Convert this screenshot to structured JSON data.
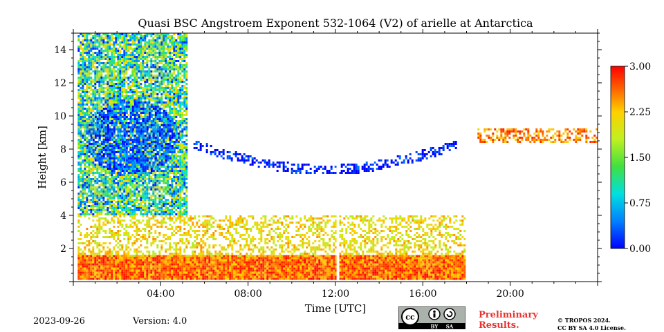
{
  "chart_data": {
    "type": "heatmap",
    "title": "Quasi BSC Angstroem Exponent 532-1064 (V2) of arielle at Antarctica",
    "xlabel": "Time [UTC]",
    "ylabel": "Height [km]",
    "x_range_hours": [
      0,
      24
    ],
    "y_range_km": [
      0,
      15
    ],
    "x_ticks": [
      {
        "value": 4,
        "label": "04:00"
      },
      {
        "value": 8,
        "label": "08:00"
      },
      {
        "value": 12,
        "label": "12:00"
      },
      {
        "value": 16,
        "label": "16:00"
      },
      {
        "value": 20,
        "label": "20:00"
      }
    ],
    "y_ticks": [
      {
        "value": 2,
        "label": "2"
      },
      {
        "value": 4,
        "label": "4"
      },
      {
        "value": 6,
        "label": "6"
      },
      {
        "value": 8,
        "label": "8"
      },
      {
        "value": 10,
        "label": "10"
      },
      {
        "value": 12,
        "label": "12"
      },
      {
        "value": 14,
        "label": "14"
      }
    ],
    "colorbar": {
      "range": [
        0.0,
        3.0
      ],
      "ticks": [
        {
          "value": 0.0,
          "label": "0.00"
        },
        {
          "value": 0.75,
          "label": "0.75"
        },
        {
          "value": 1.5,
          "label": "1.50"
        },
        {
          "value": 2.25,
          "label": "2.25"
        },
        {
          "value": 3.0,
          "label": "3.00"
        }
      ],
      "colormap": "jet"
    },
    "regions": [
      {
        "name": "boundary-layer",
        "t": [
          0.2,
          17.9
        ],
        "h": [
          0.1,
          1.6
        ],
        "value": 2.6
      },
      {
        "name": "lower-aerosol",
        "t": [
          0.2,
          17.9
        ],
        "h": [
          1.6,
          4.0
        ],
        "value": 2.1
      },
      {
        "name": "early-noisy-column",
        "t": [
          0.2,
          5.2
        ],
        "h": [
          4.0,
          15.0
        ],
        "value": 1.2
      },
      {
        "name": "blue-cloud",
        "t": [
          0.5,
          4.8
        ],
        "h": [
          6.5,
          11.0
        ],
        "value": 0.3
      },
      {
        "name": "thin-cirrus",
        "t": [
          5.5,
          17.5
        ],
        "h": [
          6.5,
          9.0
        ],
        "value": 0.05
      },
      {
        "name": "late-cloud",
        "t": [
          18.5,
          24.0
        ],
        "h": [
          7.8,
          10.0
        ],
        "value": 2.5
      }
    ]
  },
  "footer": {
    "date": "2023-09-26",
    "version": "Version: 4.0",
    "preliminary_line1": "Preliminary",
    "preliminary_line2": "Results.",
    "copyright_line1": "© TROPOS 2024.",
    "copyright_line2": "CC BY SA 4.0 License."
  },
  "license_badge": {
    "cc": "cc",
    "by": "BY",
    "sa": "SA"
  }
}
